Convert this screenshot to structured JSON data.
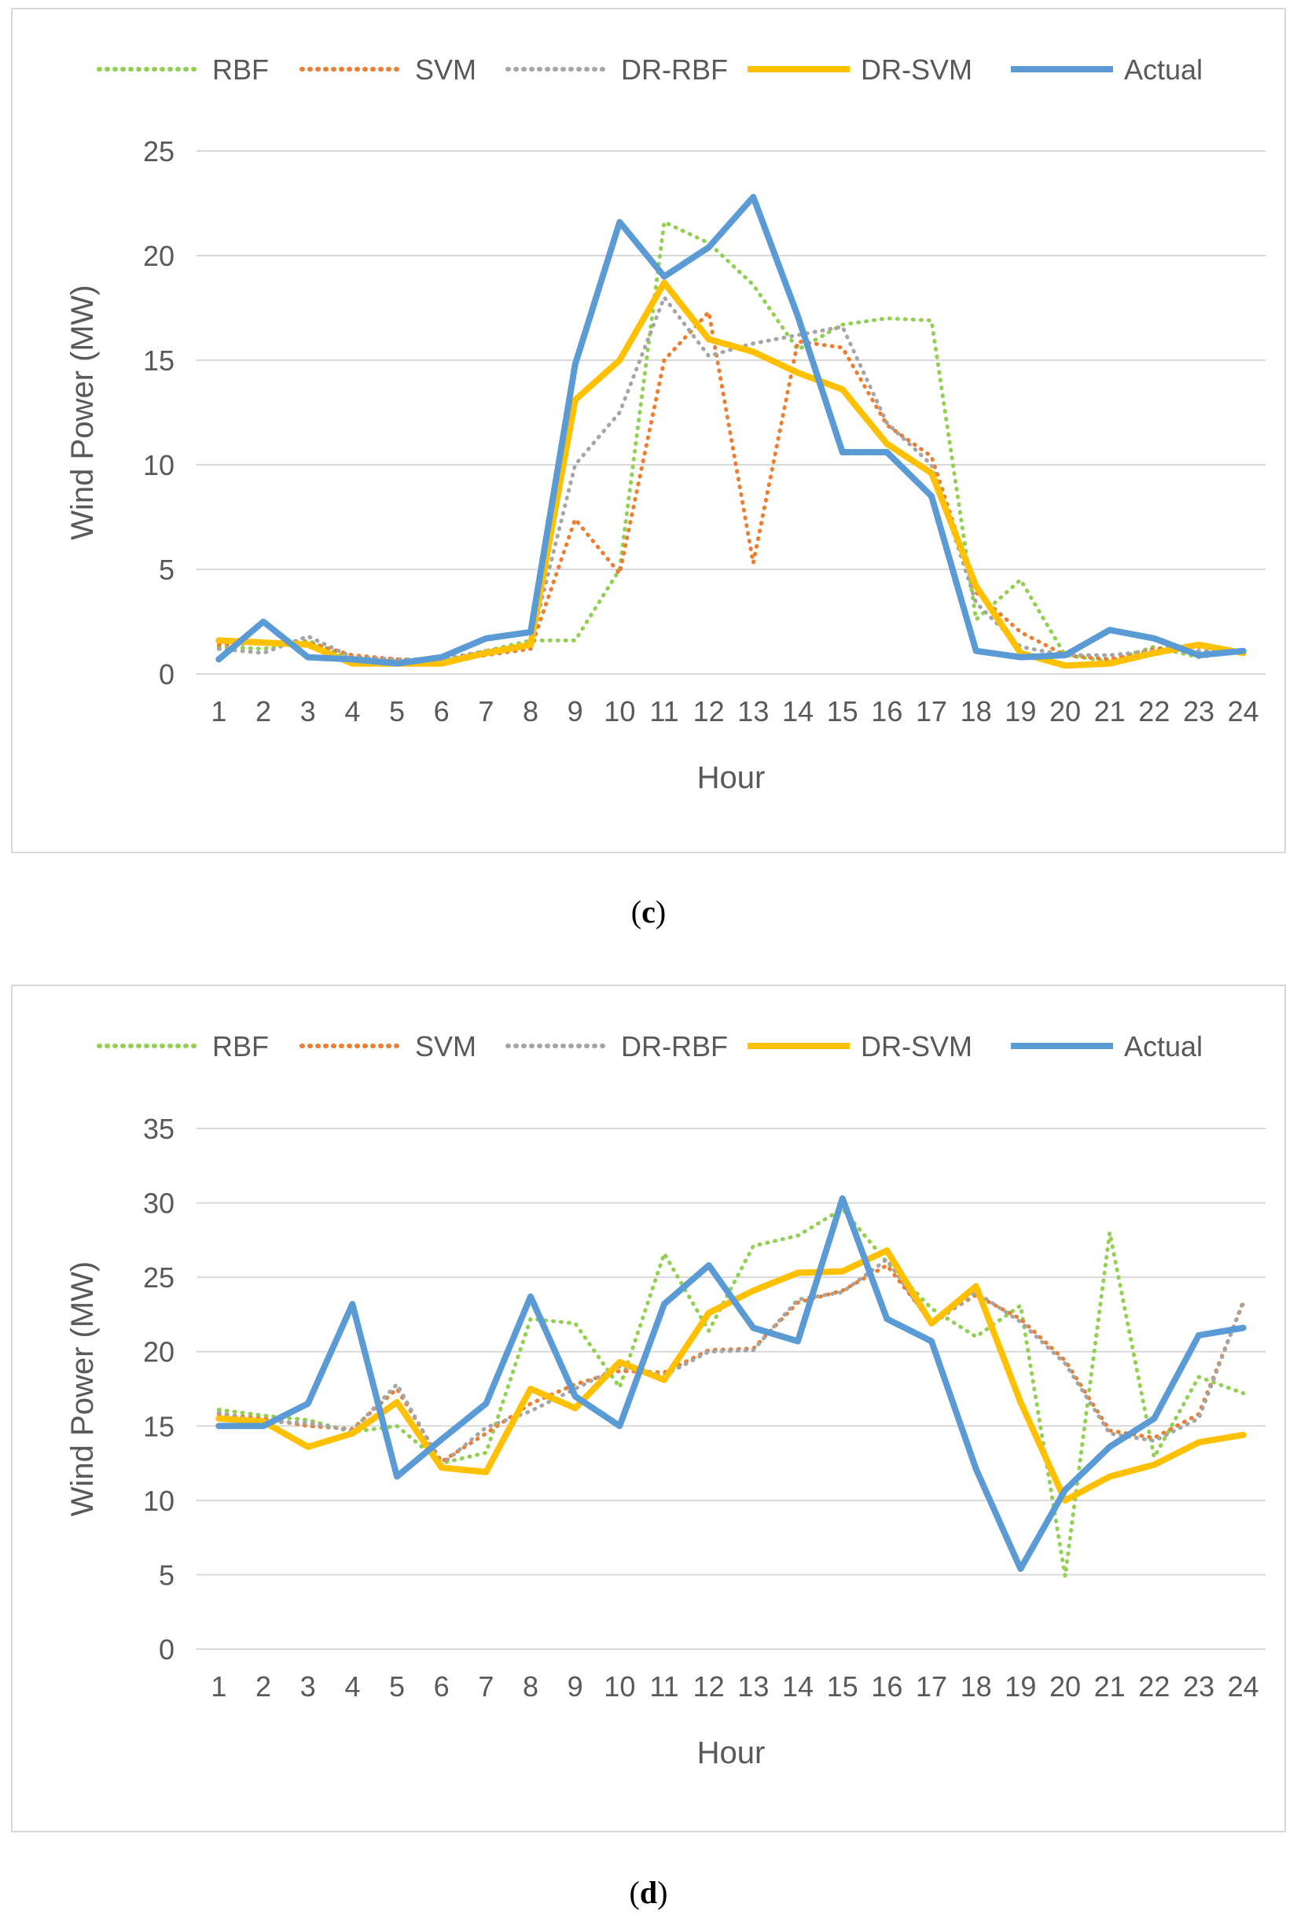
{
  "chart_data": [
    {
      "id": "c",
      "type": "line",
      "caption": "c",
      "xlabel": "Hour",
      "ylabel": "Wind Power (MW)",
      "ylim": [
        0,
        25
      ],
      "yticks": [
        0,
        5,
        10,
        15,
        20,
        25
      ],
      "grid": true,
      "legend_position": "top",
      "categories": [
        "1",
        "2",
        "3",
        "4",
        "5",
        "6",
        "7",
        "8",
        "9",
        "10",
        "11",
        "12",
        "13",
        "14",
        "15",
        "16",
        "17",
        "18",
        "19",
        "20",
        "21",
        "22",
        "23",
        "24"
      ],
      "series": [
        {
          "name": "RBF",
          "style": "dotted",
          "color": "#92d050",
          "values": [
            1.3,
            1.2,
            1.6,
            0.7,
            0.6,
            0.6,
            1.1,
            1.6,
            1.6,
            5.0,
            21.6,
            20.6,
            18.6,
            15.5,
            16.7,
            17.0,
            16.9,
            2.6,
            4.5,
            0.9,
            0.6,
            1.3,
            0.8,
            1.1
          ]
        },
        {
          "name": "SVM",
          "style": "dotted",
          "color": "#ed7d31",
          "values": [
            1.4,
            1.5,
            1.5,
            0.9,
            0.7,
            0.6,
            0.9,
            1.2,
            7.4,
            4.8,
            15.0,
            17.3,
            5.3,
            15.9,
            15.6,
            11.9,
            10.4,
            3.9,
            2.0,
            0.9,
            0.7,
            1.2,
            1.3,
            1.0
          ]
        },
        {
          "name": "DR-RBF",
          "style": "dotted",
          "color": "#a5a5a5",
          "values": [
            1.2,
            1.0,
            1.8,
            0.8,
            0.7,
            0.7,
            1.1,
            1.4,
            10.0,
            12.5,
            18.0,
            15.2,
            15.8,
            16.2,
            16.6,
            12.0,
            10.0,
            3.4,
            1.3,
            0.9,
            0.9,
            1.1,
            1.1,
            1.1
          ]
        },
        {
          "name": "DR-SVM",
          "style": "solid",
          "color": "#ffc000",
          "values": [
            1.6,
            1.5,
            1.4,
            0.5,
            0.5,
            0.5,
            1.0,
            1.4,
            13.1,
            15.0,
            18.7,
            16.0,
            15.4,
            14.4,
            13.6,
            11.0,
            9.6,
            4.2,
            1.0,
            0.4,
            0.5,
            1.0,
            1.4,
            1.0
          ]
        },
        {
          "name": "Actual",
          "style": "solid",
          "color": "#5b9bd5",
          "values": [
            0.7,
            2.5,
            0.8,
            0.7,
            0.5,
            0.8,
            1.7,
            2.0,
            14.8,
            21.6,
            19.0,
            20.4,
            22.8,
            17.1,
            10.6,
            10.6,
            8.5,
            1.1,
            0.8,
            0.9,
            2.1,
            1.7,
            0.9,
            1.1
          ]
        }
      ]
    },
    {
      "id": "d",
      "type": "line",
      "caption": "d",
      "xlabel": "Hour",
      "ylabel": "Wind Power (MW)",
      "ylim": [
        0,
        35
      ],
      "yticks": [
        0,
        5,
        10,
        15,
        20,
        25,
        30,
        35
      ],
      "grid": true,
      "legend_position": "top",
      "categories": [
        "1",
        "2",
        "3",
        "4",
        "5",
        "6",
        "7",
        "8",
        "9",
        "10",
        "11",
        "12",
        "13",
        "14",
        "15",
        "16",
        "17",
        "18",
        "19",
        "20",
        "21",
        "22",
        "23",
        "24"
      ],
      "series": [
        {
          "name": "RBF",
          "style": "dotted",
          "color": "#92d050",
          "values": [
            16.1,
            15.7,
            15.4,
            14.6,
            15.0,
            12.5,
            13.2,
            22.2,
            21.9,
            17.6,
            26.6,
            21.4,
            27.1,
            27.8,
            29.6,
            26.0,
            22.9,
            21.0,
            23.1,
            4.9,
            28.0,
            12.9,
            18.3,
            17.2
          ]
        },
        {
          "name": "SVM",
          "style": "dotted",
          "color": "#ed7d31",
          "values": [
            15.8,
            15.5,
            15.0,
            14.8,
            17.5,
            12.6,
            14.5,
            16.5,
            17.8,
            18.7,
            18.6,
            20.1,
            20.2,
            23.3,
            24.1,
            25.8,
            22.0,
            23.8,
            22.2,
            19.4,
            14.7,
            14.2,
            15.8,
            23.3
          ]
        },
        {
          "name": "DR-RBF",
          "style": "dotted",
          "color": "#a5a5a5",
          "values": [
            15.9,
            15.3,
            15.2,
            14.7,
            17.8,
            12.4,
            14.9,
            16.0,
            17.5,
            19.0,
            18.4,
            20.0,
            20.1,
            23.5,
            24.0,
            26.2,
            21.8,
            24.0,
            22.0,
            19.2,
            14.5,
            14.0,
            15.5,
            23.4
          ]
        },
        {
          "name": "DR-SVM",
          "style": "solid",
          "color": "#ffc000",
          "values": [
            15.5,
            15.3,
            13.6,
            14.5,
            16.6,
            12.2,
            11.9,
            17.5,
            16.2,
            19.3,
            18.1,
            22.6,
            24.1,
            25.3,
            25.4,
            26.8,
            21.9,
            24.4,
            16.6,
            10.0,
            11.6,
            12.4,
            13.9,
            14.4
          ]
        },
        {
          "name": "Actual",
          "style": "solid",
          "color": "#5b9bd5",
          "values": [
            15.0,
            15.0,
            16.5,
            23.2,
            11.6,
            14.1,
            16.5,
            23.7,
            17.0,
            15.0,
            23.2,
            25.8,
            21.6,
            20.7,
            30.3,
            22.2,
            20.7,
            12.1,
            5.4,
            10.7,
            13.6,
            15.5,
            21.1,
            21.6
          ]
        }
      ]
    }
  ]
}
